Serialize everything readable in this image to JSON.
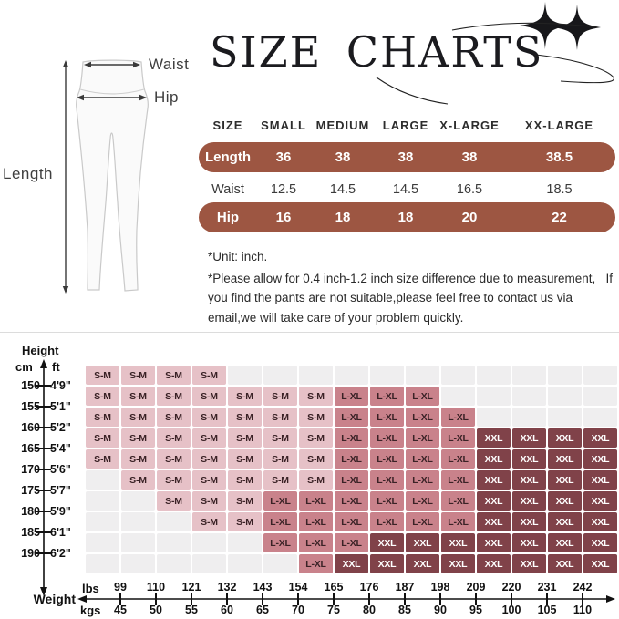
{
  "title": "SIZE CHARTS",
  "illustration": {
    "waist_label": "Waist",
    "hip_label": "Hip",
    "length_label": "Length"
  },
  "notes": {
    "unit_note": "*Unit: inch.",
    "disclaimer": "*Please allow for 0.4 inch-1.2 inch size difference due to measurement,   If you find the pants are not suitable,please feel free to contact us via email,we will take care of your problem quickly."
  },
  "fit_chart": {
    "height_title": "Height",
    "height_unit_left": "cm",
    "height_unit_right": "ft",
    "weight_title": "Weight",
    "weight_unit_top": "lbs",
    "weight_unit_bottom": "kgs"
  },
  "chart_data": [
    {
      "type": "table",
      "title": "SIZE CHARTS",
      "unit": "inch",
      "columns": [
        "SIZE",
        "SMALL",
        "MEDIUM",
        "LARGE",
        "X-LARGE",
        "XX-LARGE"
      ],
      "rows": [
        [
          "Length",
          "36",
          "38",
          "38",
          "38",
          "38.5"
        ],
        [
          "Waist",
          "12.5",
          "14.5",
          "14.5",
          "16.5",
          "18.5"
        ],
        [
          "Hip",
          "16",
          "18",
          "18",
          "20",
          "22"
        ]
      ],
      "highlighted_rows": [
        0,
        2
      ]
    },
    {
      "type": "heatmap",
      "x_axis": {
        "label": "Weight",
        "units": [
          "lbs",
          "kgs"
        ],
        "lbs": [
          99,
          110,
          121,
          132,
          143,
          154,
          165,
          176,
          187,
          198,
          209,
          220,
          231,
          242
        ],
        "kgs": [
          45,
          50,
          55,
          60,
          65,
          70,
          75,
          80,
          85,
          90,
          95,
          100,
          105,
          110
        ],
        "tick_position": "cell-boundary"
      },
      "y_axis": {
        "label": "Height",
        "units": [
          "cm",
          "ft"
        ],
        "cm": [
          150,
          155,
          160,
          165,
          170,
          175,
          180,
          185,
          190
        ],
        "ft": [
          "4'9\"",
          "5'1\"",
          "5'2\"",
          "5'4\"",
          "5'6\"",
          "5'7\"",
          "5'9\"",
          "6'1\"",
          "6'2\""
        ],
        "tick_position": "cell-boundary"
      },
      "values": [
        "S-M",
        "L-XL",
        "XXL"
      ],
      "grid": [
        [
          "S-M",
          "S-M",
          "S-M",
          "S-M",
          "",
          "",
          "",
          "",
          "",
          "",
          "",
          "",
          "",
          "",
          ""
        ],
        [
          "S-M",
          "S-M",
          "S-M",
          "S-M",
          "S-M",
          "S-M",
          "S-M",
          "L-XL",
          "L-XL",
          "L-XL",
          "",
          "",
          "",
          "",
          ""
        ],
        [
          "S-M",
          "S-M",
          "S-M",
          "S-M",
          "S-M",
          "S-M",
          "S-M",
          "L-XL",
          "L-XL",
          "L-XL",
          "L-XL",
          "",
          "",
          "",
          ""
        ],
        [
          "S-M",
          "S-M",
          "S-M",
          "S-M",
          "S-M",
          "S-M",
          "S-M",
          "L-XL",
          "L-XL",
          "L-XL",
          "L-XL",
          "XXL",
          "XXL",
          "XXL",
          "XXL"
        ],
        [
          "S-M",
          "S-M",
          "S-M",
          "S-M",
          "S-M",
          "S-M",
          "S-M",
          "L-XL",
          "L-XL",
          "L-XL",
          "L-XL",
          "XXL",
          "XXL",
          "XXL",
          "XXL"
        ],
        [
          "",
          "S-M",
          "S-M",
          "S-M",
          "S-M",
          "S-M",
          "S-M",
          "L-XL",
          "L-XL",
          "L-XL",
          "L-XL",
          "XXL",
          "XXL",
          "XXL",
          "XXL"
        ],
        [
          "",
          "",
          "S-M",
          "S-M",
          "S-M",
          "L-XL",
          "L-XL",
          "L-XL",
          "L-XL",
          "L-XL",
          "L-XL",
          "XXL",
          "XXL",
          "XXL",
          "XXL"
        ],
        [
          "",
          "",
          "",
          "S-M",
          "S-M",
          "L-XL",
          "L-XL",
          "L-XL",
          "L-XL",
          "L-XL",
          "L-XL",
          "XXL",
          "XXL",
          "XXL",
          "XXL"
        ],
        [
          "",
          "",
          "",
          "",
          "",
          "L-XL",
          "L-XL",
          "L-XL",
          "XXL",
          "XXL",
          "XXL",
          "XXL",
          "XXL",
          "XXL",
          "XXL"
        ],
        [
          "",
          "",
          "",
          "",
          "",
          "",
          "L-XL",
          "XXL",
          "XXL",
          "XXL",
          "XXL",
          "XXL",
          "XXL",
          "XXL",
          "XXL"
        ]
      ]
    }
  ],
  "colors": {
    "accent_brown": "#9d5642",
    "sm_cell": "#e6c1c7",
    "lxl_cell": "#c9828b",
    "xxl_cell": "#804249",
    "empty_cell": "#efeeef",
    "cell_text_dark": "#3a2226",
    "title_text": "#1b1b1f"
  }
}
